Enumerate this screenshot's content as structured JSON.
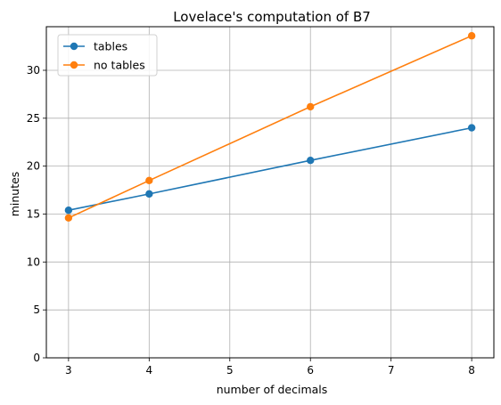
{
  "chart_data": {
    "type": "line",
    "title": "Lovelace's computation of B7",
    "xlabel": "number of decimals",
    "ylabel": "minutes",
    "x": [
      3,
      4,
      6,
      8
    ],
    "xticks": [
      3,
      4,
      5,
      6,
      7,
      8
    ],
    "yticks": [
      0,
      5,
      10,
      15,
      20,
      25,
      30
    ],
    "xlim": [
      2.725,
      8.275
    ],
    "ylim": [
      0,
      34.55
    ],
    "grid": true,
    "legend_position": "upper-left",
    "series": [
      {
        "name": "tables",
        "color": "#1f77b4",
        "values": [
          15.4,
          17.1,
          20.6,
          24.0
        ]
      },
      {
        "name": "no tables",
        "color": "#ff7f0e",
        "values": [
          14.6,
          18.5,
          26.2,
          33.6
        ]
      }
    ]
  }
}
